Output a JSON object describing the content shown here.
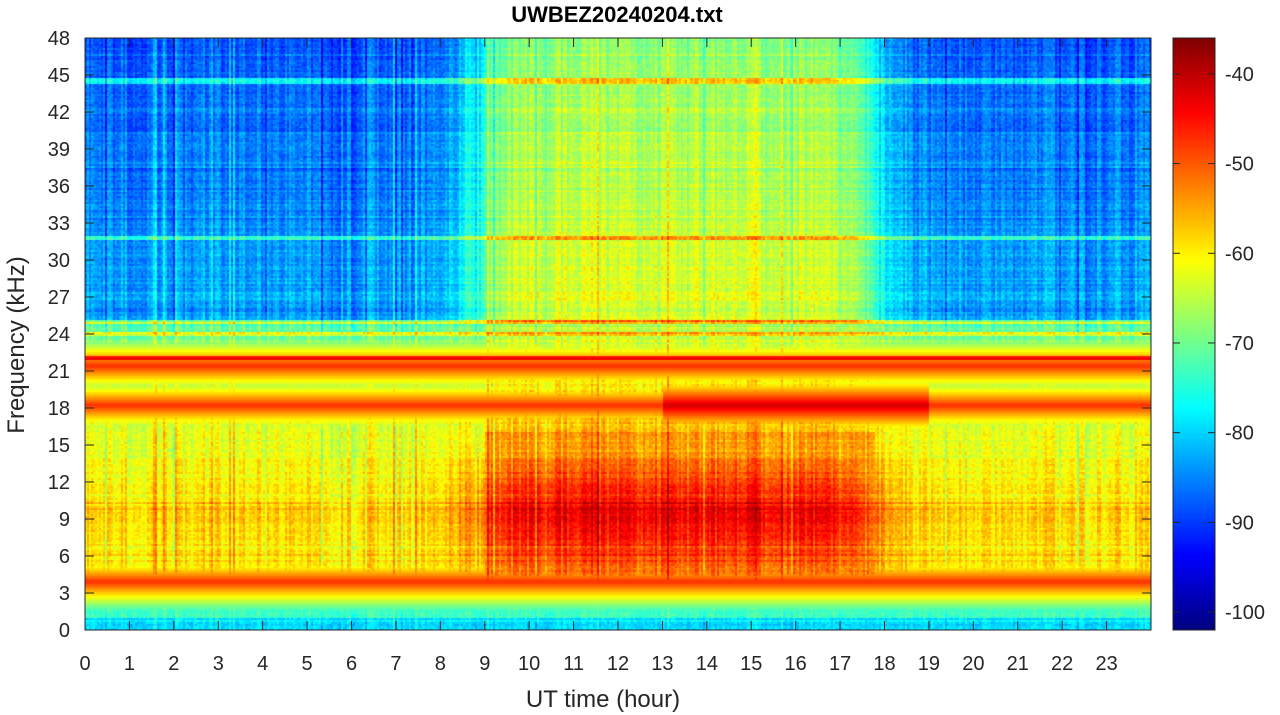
{
  "chart_data": {
    "type": "heatmap",
    "title": "UWBEZ20240204.txt",
    "xlabel": "UT time (hour)",
    "ylabel": "Frequency (kHz)",
    "xlim": [
      0,
      24
    ],
    "ylim": [
      0,
      48
    ],
    "x_ticks": [
      "0",
      "1",
      "2",
      "3",
      "4",
      "5",
      "6",
      "7",
      "8",
      "9",
      "10",
      "11",
      "12",
      "13",
      "14",
      "15",
      "16",
      "17",
      "18",
      "19",
      "20",
      "21",
      "22",
      "23"
    ],
    "y_ticks": [
      "0",
      "3",
      "6",
      "9",
      "12",
      "15",
      "18",
      "21",
      "24",
      "27",
      "30",
      "33",
      "36",
      "39",
      "42",
      "45",
      "48"
    ],
    "colorbar": {
      "colormap": "jet",
      "range": [
        -102,
        -36
      ],
      "ticks": [
        "-40",
        "-50",
        "-60",
        "-70",
        "-80",
        "-90",
        "-100"
      ]
    },
    "features": {
      "strong_lines_khz": [
        18.2,
        21.4,
        3.9
      ],
      "weak_lines_khz": [
        25.0,
        22.0,
        24.0,
        31.8,
        44.5
      ],
      "peak_emission": {
        "time_range_hour": [
          9,
          17.8
        ],
        "freq_range_khz": [
          4,
          16
        ],
        "level_db": -48
      }
    }
  }
}
